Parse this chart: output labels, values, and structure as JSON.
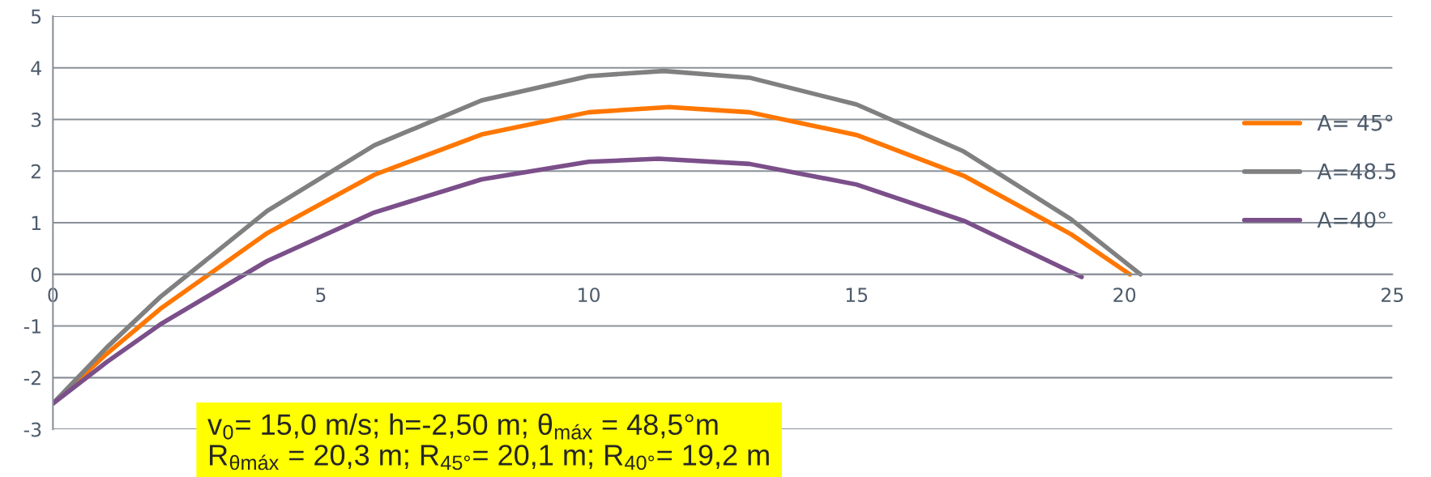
{
  "chart_data": {
    "type": "line",
    "xlim": [
      0,
      25
    ],
    "ylim": [
      -3,
      5
    ],
    "xticks": [
      0,
      5,
      10,
      15,
      20,
      25
    ],
    "yticks": [
      -3,
      -2,
      -1,
      0,
      1,
      2,
      3,
      4,
      5
    ],
    "grid": "y",
    "legend": "right",
    "marker": "none",
    "line_style": "solid",
    "series": [
      {
        "name": "A= 45°",
        "color": "#ff7700",
        "x": [
          0,
          1,
          2,
          4,
          6,
          8,
          10,
          11.5,
          13,
          15,
          17,
          19,
          20.1
        ],
        "values": [
          -2.5,
          -1.54,
          -0.67,
          0.8,
          1.93,
          2.71,
          3.14,
          3.24,
          3.14,
          2.7,
          1.91,
          0.78,
          0.0
        ]
      },
      {
        "name": "A=48.5",
        "color": "#808080",
        "x": [
          0,
          1,
          2,
          4,
          6,
          8,
          10,
          11.4,
          13,
          15,
          17,
          19,
          20.3
        ],
        "values": [
          -2.5,
          -1.42,
          -0.44,
          1.23,
          2.5,
          3.37,
          3.84,
          3.94,
          3.81,
          3.29,
          2.38,
          1.07,
          0.0
        ]
      },
      {
        "name": "A=40°",
        "color": "#7b4f8a",
        "x": [
          0,
          1,
          2,
          4,
          6,
          8,
          10,
          11.3,
          13,
          15,
          17,
          19.2
        ],
        "values": [
          -2.5,
          -1.7,
          -0.97,
          0.26,
          1.2,
          1.84,
          2.18,
          2.24,
          2.14,
          1.74,
          1.04,
          -0.05
        ]
      }
    ],
    "annotations": [
      "v$_{0}$= 15,0 m/s; h=-2,50 m; θ$_{máx}$ = 48,5°m\nR$_{θmáx}$ = 20,3 m; R$_{45°}$= 20,1 m; R$_{40°}$= 19,2 m"
    ]
  }
}
